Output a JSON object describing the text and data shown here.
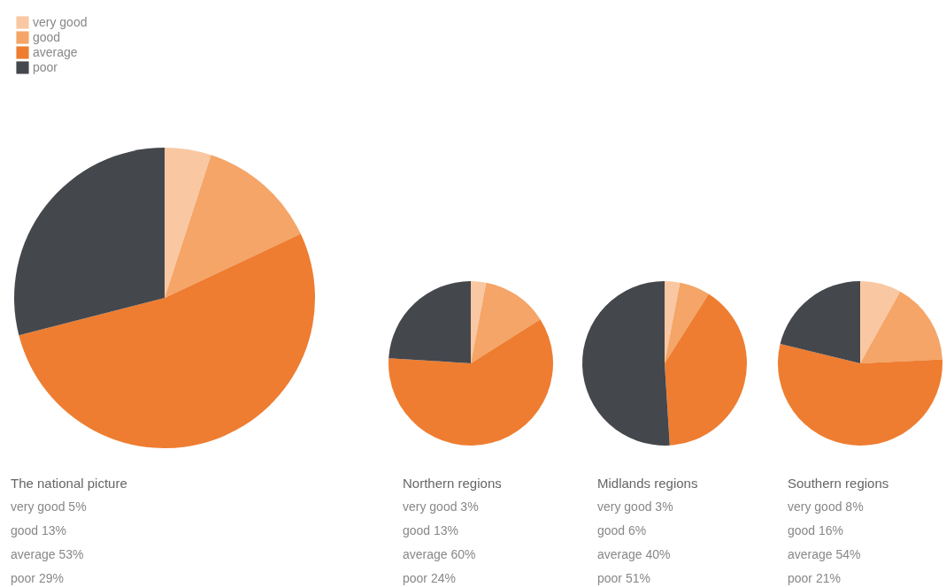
{
  "chart_data": [
    {
      "type": "pie",
      "title": "The national picture",
      "categories": [
        "very good",
        "good",
        "average",
        "poor"
      ],
      "values": [
        5,
        13,
        53,
        29
      ],
      "colors": [
        "#f9c8a2",
        "#f4a567",
        "#ee7d31",
        "#44474c"
      ],
      "annotations": [
        "very good 5%",
        "good 13%",
        "average 53%",
        "poor 29%"
      ],
      "legend": "top left"
    },
    {
      "type": "pie",
      "title": "Northern regions",
      "categories": [
        null,
        null,
        null,
        null
      ],
      "values": [
        3,
        13,
        60,
        24
      ],
      "colors": [
        "#f9c8a2",
        "#f4a567",
        "#ee7d31",
        "#44474c"
      ],
      "annotations": [
        "very good 3%",
        "good 13%",
        "average 60%",
        "poor 24%"
      ]
    },
    {
      "type": "pie",
      "title": "Midlands regions",
      "categories": [
        null,
        null,
        null,
        null
      ],
      "values": [
        3,
        6,
        40,
        51
      ],
      "colors": [
        "#f9c8a2",
        "#f4a567",
        "#ee7d31",
        "#44474c"
      ],
      "annotations": [
        "very good 3%",
        "good 6%",
        "average 40%",
        "poor 51%"
      ]
    },
    {
      "type": "pie",
      "title": "Southern regions",
      "categories": [
        null,
        null,
        null,
        null
      ],
      "values": [
        8,
        16,
        54,
        21
      ],
      "colors": [
        "#f9c8a2",
        "#f4a567",
        "#ee7d31",
        "#44474c"
      ],
      "annotations": [
        "very good 8%",
        "good 16%",
        "average 54%",
        "poor 21%"
      ]
    }
  ]
}
